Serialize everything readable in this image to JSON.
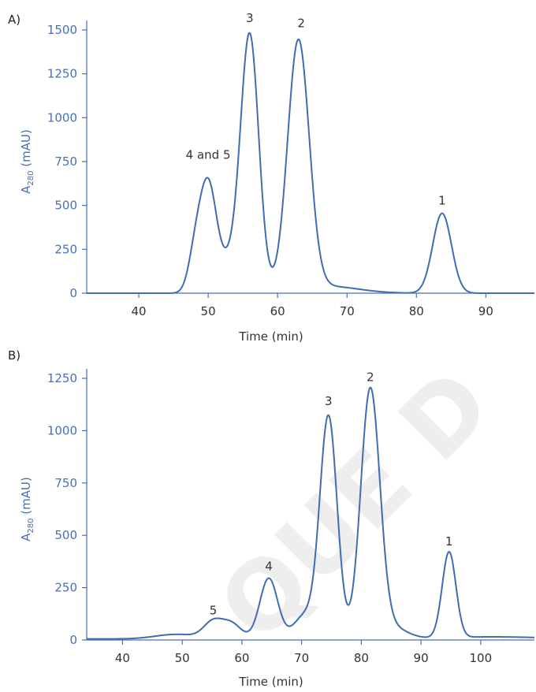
{
  "colors": {
    "trace": "#3f6db3",
    "axis": "#4a6fb5",
    "text": "#333333",
    "watermark": "#eeeeee"
  },
  "watermark_text": "QUE D",
  "chart_data": [
    {
      "panel_label": "A)",
      "type": "line",
      "xlabel": "Time (min)",
      "ylabel": "A280 (mAU)",
      "ylabel_main": "A",
      "ylabel_sub": "280",
      "ylabel_unit": " (mAU)",
      "xlim": [
        32.5,
        97
      ],
      "ylim": [
        0,
        1500
      ],
      "xticks": [
        40,
        50,
        60,
        70,
        80,
        90
      ],
      "yticks": [
        0,
        250,
        500,
        750,
        1000,
        1250,
        1500
      ],
      "grid": false,
      "baseline": 0,
      "peaks": [
        {
          "center": 48.2,
          "height": 230,
          "width": 1.0
        },
        {
          "center": 50.0,
          "height": 560,
          "width": 1.15
        },
        {
          "center": 53.0,
          "height": 175,
          "width": 1.9
        },
        {
          "center": 56.0,
          "height": 1430,
          "width": 1.3
        },
        {
          "center": 63.0,
          "height": 1420,
          "width": 1.55
        },
        {
          "center": 67.0,
          "height": 40,
          "width": 4.5
        },
        {
          "center": 83.7,
          "height": 455,
          "width": 1.35
        }
      ],
      "peak_labels": [
        {
          "text": "3",
          "x": 56.0,
          "y": 1500
        },
        {
          "text": "2",
          "x": 63.4,
          "y": 1470
        },
        {
          "text": "4 and 5",
          "x": 50.0,
          "y": 720
        },
        {
          "text": "1",
          "x": 83.7,
          "y": 460
        }
      ]
    },
    {
      "panel_label": "B)",
      "type": "line",
      "xlabel": "Time (min)",
      "ylabel": "A280 (mAU)",
      "ylabel_main": "A",
      "ylabel_sub": "280",
      "ylabel_unit": " (mAU)",
      "xlim": [
        34,
        109
      ],
      "ylim": [
        0,
        1250
      ],
      "xticks": [
        40,
        50,
        60,
        70,
        80,
        90,
        100
      ],
      "yticks": [
        0,
        250,
        500,
        750,
        1000,
        1250
      ],
      "grid": false,
      "baseline": 5,
      "peaks": [
        {
          "center": 49.0,
          "height": 22,
          "width": 3.5
        },
        {
          "center": 55.2,
          "height": 80,
          "width": 1.6
        },
        {
          "center": 58.3,
          "height": 70,
          "width": 1.6
        },
        {
          "center": 64.5,
          "height": 290,
          "width": 1.5
        },
        {
          "center": 70.5,
          "height": 110,
          "width": 1.8
        },
        {
          "center": 74.5,
          "height": 1060,
          "width": 1.45
        },
        {
          "center": 81.5,
          "height": 1180,
          "width": 1.6
        },
        {
          "center": 85.0,
          "height": 55,
          "width": 2.5
        },
        {
          "center": 94.7,
          "height": 410,
          "width": 1.15
        },
        {
          "center": 102.0,
          "height": 10,
          "width": 8.0
        }
      ],
      "peak_labels": [
        {
          "text": "2",
          "x": 81.5,
          "y": 1200
        },
        {
          "text": "3",
          "x": 74.5,
          "y": 1085
        },
        {
          "text": "1",
          "x": 94.7,
          "y": 415
        },
        {
          "text": "4",
          "x": 64.5,
          "y": 295
        },
        {
          "text": "5",
          "x": 55.2,
          "y": 85
        }
      ]
    }
  ]
}
